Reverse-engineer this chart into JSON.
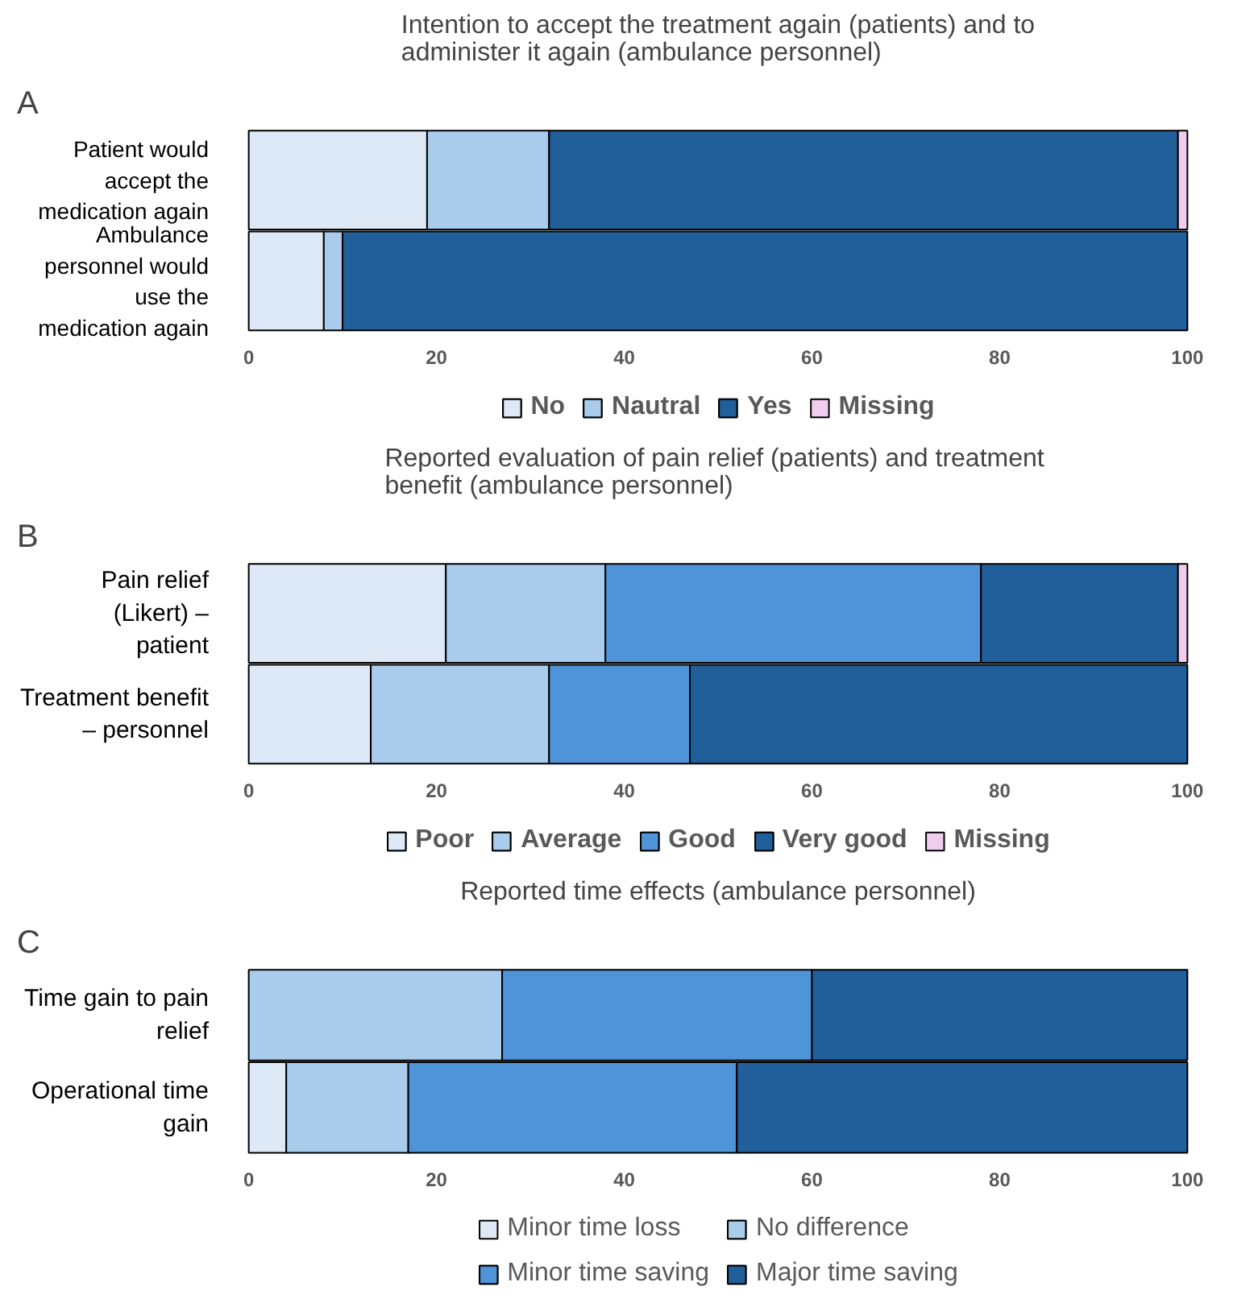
{
  "chart_data": [
    {
      "type": "bar",
      "orientation": "horizontal",
      "stacked": true,
      "title": "Intention to accept the treatment again (patients) and to administer it again (ambulance personnel)",
      "annotations": [
        "A"
      ],
      "categories": [
        "Patient would accept the medication again",
        "Ambulance personnel would use the medication again"
      ],
      "xlim": [
        0,
        100
      ],
      "xticks": [
        0,
        20,
        40,
        60,
        80,
        100
      ],
      "grid": false,
      "legend": "bottom",
      "series": [
        {
          "name": "No",
          "color": "#dde9f6",
          "values": [
            19,
            8
          ]
        },
        {
          "name": "Nautral",
          "color": "#a9cbec",
          "values": [
            13,
            2
          ]
        },
        {
          "name": "Yes",
          "color": "#215f9b",
          "values": [
            67,
            90
          ]
        },
        {
          "name": "Missing",
          "color": "#f0cdee",
          "values": [
            1,
            null
          ]
        }
      ]
    },
    {
      "type": "bar",
      "orientation": "horizontal",
      "stacked": true,
      "title": "Reported evaluation of pain relief (patients)  and treatment benefit (ambulance personnel)",
      "annotations": [
        "B"
      ],
      "categories": [
        "Pain relief (Likert) – patient",
        "Treatment benefit – personnel"
      ],
      "xlim": [
        0,
        100
      ],
      "xticks": [
        0,
        20,
        40,
        60,
        80,
        100
      ],
      "grid": false,
      "legend": "bottom",
      "series": [
        {
          "name": "Poor",
          "color": "#dde9f6",
          "values": [
            21,
            13
          ]
        },
        {
          "name": "Average",
          "color": "#a9cbec",
          "values": [
            17,
            19
          ]
        },
        {
          "name": "Good",
          "color": "#4f94d9",
          "values": [
            40,
            15
          ]
        },
        {
          "name": "Very good",
          "color": "#215f9b",
          "values": [
            21,
            53
          ]
        },
        {
          "name": "Missing",
          "color": "#f0cdee",
          "values": [
            1,
            null
          ]
        }
      ]
    },
    {
      "type": "bar",
      "orientation": "horizontal",
      "stacked": true,
      "title": "Reported time effects (ambulance personnel)",
      "annotations": [
        "C"
      ],
      "categories": [
        "Time gain to pain relief",
        "Operational time gain"
      ],
      "xlim": [
        0,
        100
      ],
      "xticks": [
        0,
        20,
        40,
        60,
        80,
        100
      ],
      "grid": false,
      "legend": "bottom",
      "series": [
        {
          "name": "Minor time loss",
          "color": "#dde9f6",
          "values": [
            null,
            4
          ]
        },
        {
          "name": "No difference",
          "color": "#a9cbec",
          "values": [
            27,
            13
          ]
        },
        {
          "name": "Minor time saving",
          "color": "#4f94d9",
          "values": [
            33,
            35
          ]
        },
        {
          "name": "Major time saving",
          "color": "#215f9b",
          "values": [
            40,
            48
          ]
        }
      ]
    }
  ]
}
